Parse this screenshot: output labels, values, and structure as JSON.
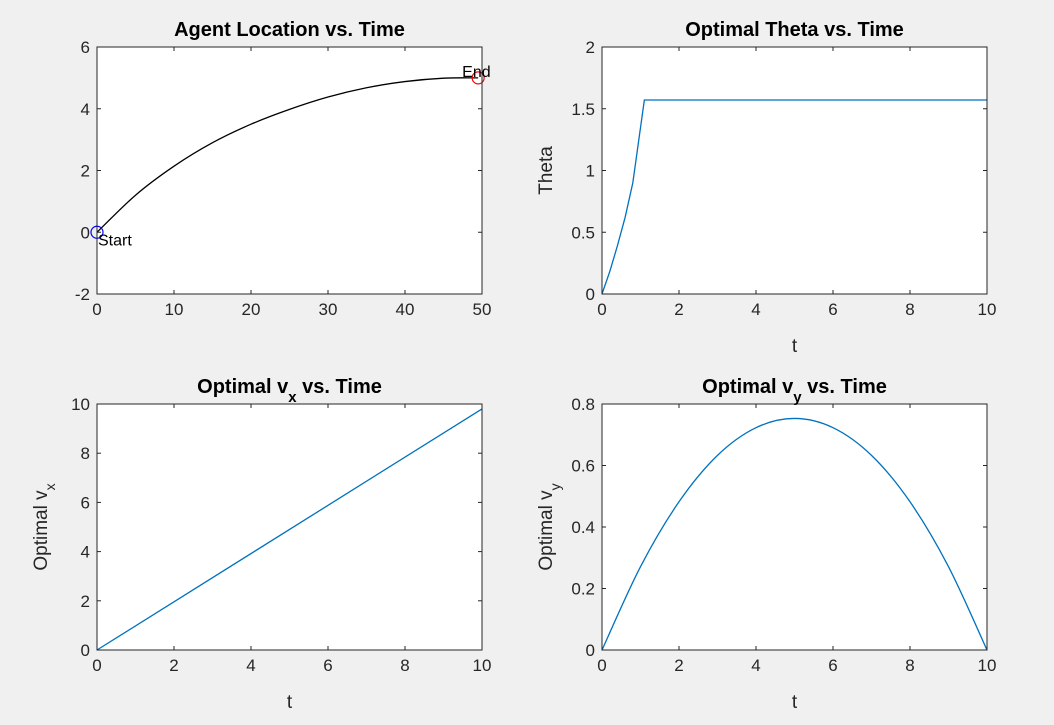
{
  "chart_data": [
    {
      "type": "line",
      "title": "Agent Location vs. Time",
      "xlabel": "",
      "ylabel": "",
      "xlim": [
        0,
        50
      ],
      "ylim": [
        -2,
        6
      ],
      "xticks": [
        0,
        10,
        20,
        30,
        40,
        50
      ],
      "yticks": [
        -2,
        0,
        2,
        4,
        6
      ],
      "grid": false,
      "series": [
        {
          "color": "#000000",
          "x": [
            0,
            5,
            10,
            15,
            20,
            25,
            30,
            35,
            40,
            45,
            49.5
          ],
          "y": [
            0,
            1.2,
            2.14,
            2.9,
            3.5,
            3.98,
            4.38,
            4.68,
            4.88,
            4.99,
            5.0
          ]
        }
      ],
      "markers": [
        {
          "x": 0,
          "y": 0,
          "color": "#0000ff"
        },
        {
          "x": 49.5,
          "y": 5.0,
          "color": "#ff0000"
        }
      ],
      "annotations": [
        {
          "text": "Start",
          "x": 0,
          "y": 0
        },
        {
          "text": "End",
          "x": 49.5,
          "y": 5.0
        }
      ]
    },
    {
      "type": "line",
      "title": "Optimal Theta vs. Time",
      "xlabel": "t",
      "ylabel": "Theta",
      "xlim": [
        0,
        10
      ],
      "ylim": [
        0,
        2
      ],
      "xticks": [
        0,
        2,
        4,
        6,
        8,
        10
      ],
      "yticks": [
        0,
        0.5,
        1,
        1.5,
        2
      ],
      "grid": false,
      "series": [
        {
          "color": "#0072bd",
          "x": [
            0,
            0.2,
            0.4,
            0.6,
            0.8,
            1.1,
            10
          ],
          "y": [
            0,
            0.18,
            0.39,
            0.62,
            0.9,
            1.5708,
            1.5708
          ]
        }
      ]
    },
    {
      "type": "line",
      "title": "Optimal v_x vs. Time",
      "xlabel": "t",
      "ylabel": "Optimal v_x",
      "xlim": [
        0,
        10
      ],
      "ylim": [
        0,
        10
      ],
      "xticks": [
        0,
        2,
        4,
        6,
        8,
        10
      ],
      "yticks": [
        0,
        2,
        4,
        6,
        8,
        10
      ],
      "grid": false,
      "series": [
        {
          "color": "#0072bd",
          "x": [
            0,
            10
          ],
          "y": [
            0,
            9.8
          ]
        }
      ]
    },
    {
      "type": "line",
      "title": "Optimal v_y vs. Time",
      "xlabel": "t",
      "ylabel": "Optimal v_y",
      "xlim": [
        0,
        10
      ],
      "ylim": [
        0,
        0.8
      ],
      "xticks": [
        0,
        2,
        4,
        6,
        8,
        10
      ],
      "yticks": [
        0,
        0.2,
        0.4,
        0.6,
        0.8
      ],
      "grid": false,
      "series": [
        {
          "color": "#0072bd",
          "x": [
            0,
            1,
            2,
            3,
            4,
            5,
            6,
            7,
            8,
            9,
            10
          ],
          "y": [
            0,
            0.271,
            0.482,
            0.633,
            0.723,
            0.753,
            0.723,
            0.633,
            0.482,
            0.271,
            0
          ]
        }
      ]
    }
  ]
}
